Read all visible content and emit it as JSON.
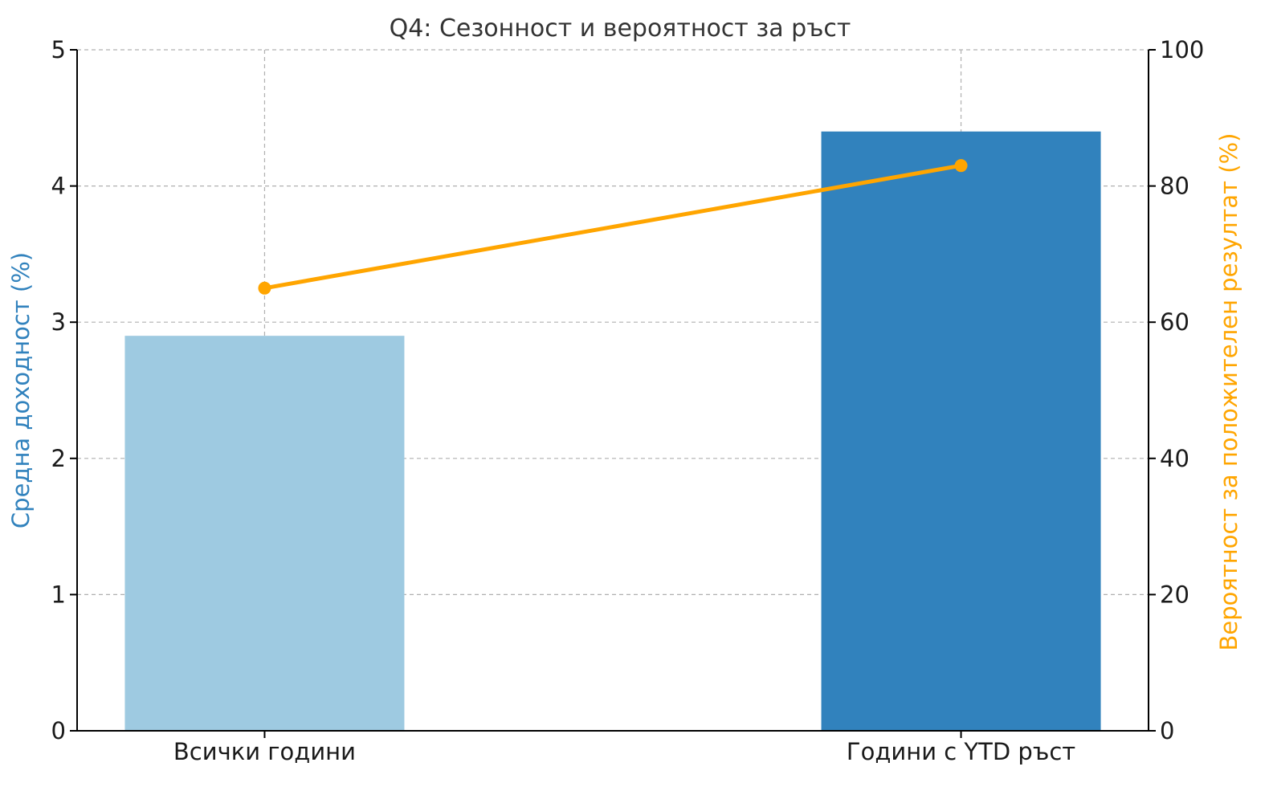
{
  "chart_data": {
    "type": "bar",
    "title": "Q4: Сезонност и вероятност за ръст",
    "categories": [
      "Всички години",
      "Години с YTD ръст"
    ],
    "series": [
      {
        "name": "Средна доходност (%)",
        "chart_type": "bar",
        "axis": "left",
        "values": [
          2.9,
          4.4
        ],
        "colors": [
          "#9ecae1",
          "#3182bd"
        ]
      },
      {
        "name": "Вероятност за положителен резултат (%)",
        "chart_type": "line",
        "axis": "right",
        "values": [
          65,
          83
        ],
        "color": "#ffa500"
      }
    ],
    "ylabel": "Средна доходност (%)",
    "ylabel_color": "#3182bd",
    "y2label": "Вероятност за положителен резултат (%)",
    "y2label_color": "#ffa500",
    "ylim": [
      0,
      5
    ],
    "y2lim": [
      0,
      100
    ],
    "yticks": [
      "0",
      "1",
      "2",
      "3",
      "4",
      "5"
    ],
    "y2ticks": [
      "0",
      "20",
      "40",
      "60",
      "80",
      "100"
    ],
    "grid": true,
    "legend": "none"
  }
}
